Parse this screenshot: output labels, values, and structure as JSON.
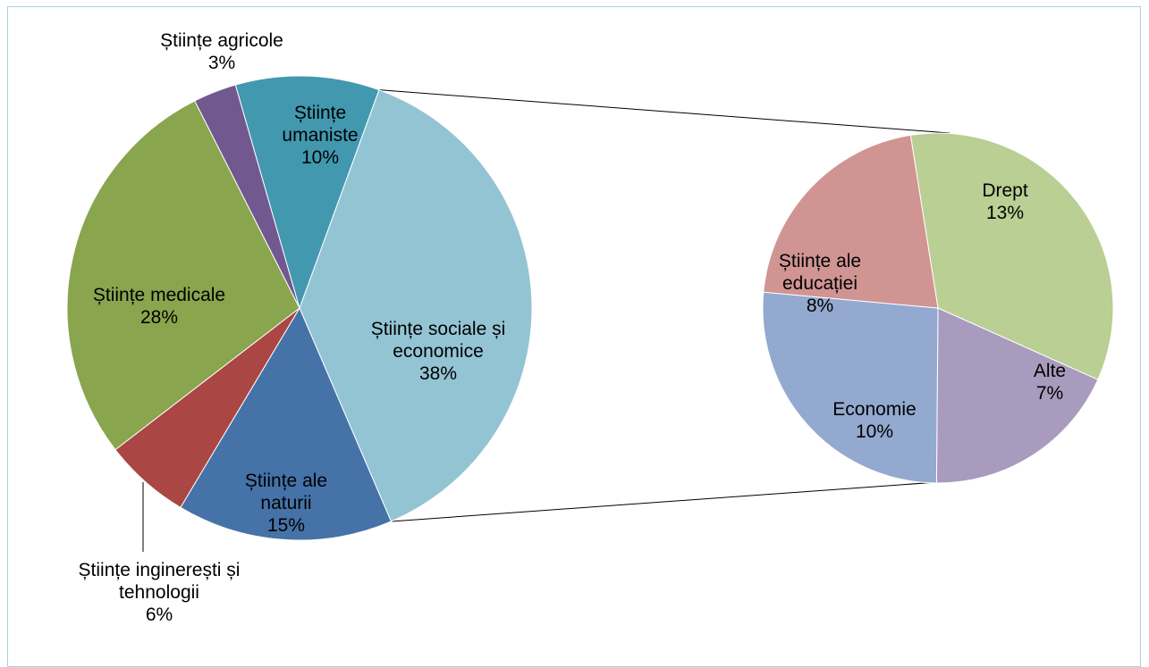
{
  "chart_data": {
    "type": "pie",
    "variant": "pie-of-pie",
    "main": {
      "slices": [
        {
          "label_lines": [
            "Științe sociale și",
            "economice",
            "38%"
          ],
          "value": 38,
          "color": "#93c4d4"
        },
        {
          "label_lines": [
            "Științe ale",
            "naturii",
            "15%"
          ],
          "value": 15,
          "color": "#4572a7"
        },
        {
          "label_lines": [
            "Științe inginerești și",
            "tehnologii",
            "6%"
          ],
          "value": 6,
          "color": "#aa4643"
        },
        {
          "label_lines": [
            "Științe medicale",
            "28%"
          ],
          "value": 28,
          "color": "#89a54e"
        },
        {
          "label_lines": [
            "Științe agricole",
            "3%"
          ],
          "value": 3,
          "color": "#71588f"
        },
        {
          "label_lines": [
            "Științe",
            "umaniste",
            "10%"
          ],
          "value": 10,
          "color": "#4198af"
        }
      ]
    },
    "secondary": {
      "parent": "Științe sociale și economice",
      "slices": [
        {
          "label_lines": [
            "Drept",
            "13%"
          ],
          "value": 13,
          "color": "#b9cf94"
        },
        {
          "label_lines": [
            "Alte",
            "7%"
          ],
          "value": 7,
          "color": "#a99bbd"
        },
        {
          "label_lines": [
            "Economie",
            "10%"
          ],
          "value": 10,
          "color": "#93a9cf"
        },
        {
          "label_lines": [
            "Științe ale",
            "educației",
            "8%"
          ],
          "value": 8,
          "color": "#d09493"
        }
      ]
    }
  }
}
